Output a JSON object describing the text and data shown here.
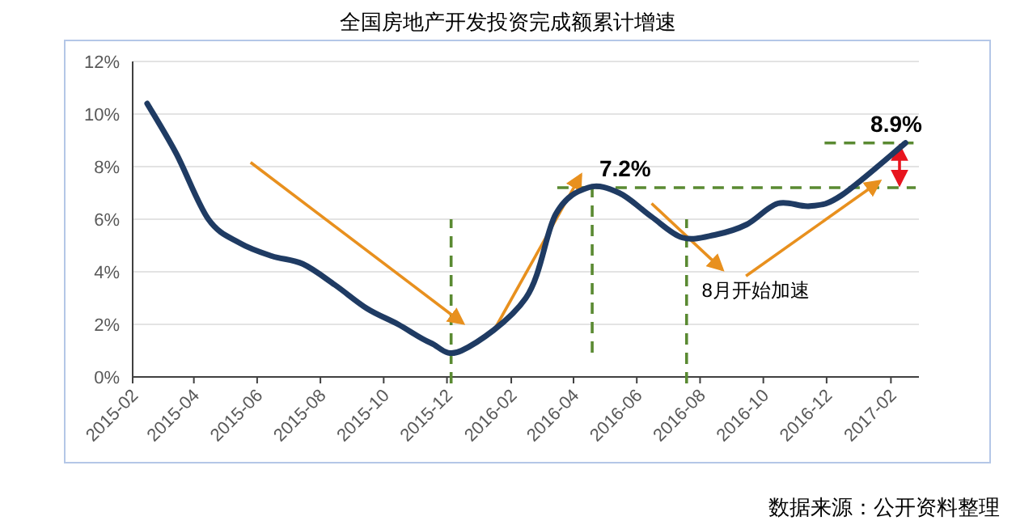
{
  "chart_data": {
    "type": "line",
    "title": "全国房地产开发投资完成额累计增速",
    "x": [
      "2015-02-15",
      "2015-03-15",
      "2015-04-15",
      "2015-05-15",
      "2015-06-15",
      "2015-07-15",
      "2015-08-15",
      "2015-09-15",
      "2015-10-15",
      "2015-11-15",
      "2015-12-15",
      "2016-02-15",
      "2016-03-15",
      "2016-04-15",
      "2016-05-15",
      "2016-06-15",
      "2016-07-15",
      "2016-08-15",
      "2016-09-15",
      "2016-10-15",
      "2016-11-15",
      "2016-12-15",
      "2017-02-15"
    ],
    "series": [
      {
        "color": "#1f3b63",
        "values": [
          10.4,
          8.5,
          6.0,
          5.1,
          4.6,
          4.3,
          3.5,
          2.6,
          2.0,
          1.3,
          1.0,
          3.0,
          6.2,
          7.2,
          7.0,
          6.1,
          5.3,
          5.4,
          5.8,
          6.6,
          6.5,
          6.9,
          8.9
        ]
      }
    ],
    "xlim": [
      "2015-02-01",
      "2017-02-28"
    ],
    "xticks": [
      {
        "value": "2015-02-01",
        "label": "2015-02"
      },
      {
        "value": "2015-04-01",
        "label": "2015-04"
      },
      {
        "value": "2015-06-01",
        "label": "2015-06"
      },
      {
        "value": "2015-08-01",
        "label": "2015-08"
      },
      {
        "value": "2015-10-01",
        "label": "2015-10"
      },
      {
        "value": "2015-12-01",
        "label": "2015-12"
      },
      {
        "value": "2016-02-01",
        "label": "2016-02"
      },
      {
        "value": "2016-04-01",
        "label": "2016-04"
      },
      {
        "value": "2016-06-01",
        "label": "2016-06"
      },
      {
        "value": "2016-08-01",
        "label": "2016-08"
      },
      {
        "value": "2016-10-01",
        "label": "2016-10"
      },
      {
        "value": "2016-12-01",
        "label": "2016-12"
      },
      {
        "value": "2017-02-01",
        "label": "2017-02"
      }
    ],
    "ylim": [
      0,
      12
    ],
    "yticks": [
      {
        "value": 0,
        "label": "0%"
      },
      {
        "value": 2,
        "label": "2%"
      },
      {
        "value": 4,
        "label": "4%"
      },
      {
        "value": 6,
        "label": "6%"
      },
      {
        "value": 8,
        "label": "8%"
      },
      {
        "value": 10,
        "label": "10%"
      },
      {
        "value": 12,
        "label": "12%"
      }
    ],
    "grid": "y",
    "marker": "none",
    "line_style": "solid",
    "ref_lines": [
      {
        "axis": "x",
        "value": "2015-12-05",
        "color": "#5a8a32",
        "line_style": "dashed"
      },
      {
        "axis": "x",
        "value": "2016-04-19",
        "color": "#5a8a32",
        "line_style": "dashed"
      },
      {
        "axis": "x",
        "value": "2016-07-19",
        "color": "#5a8a32",
        "line_style": "dashed"
      },
      {
        "axis": "y",
        "value": 7.2,
        "label": "7.2%",
        "color": "#5a8a32",
        "line_style": "dashed"
      },
      {
        "axis": "y",
        "value": 8.9,
        "label": "8.9%",
        "color": "#5a8a32",
        "line_style": "dashed"
      }
    ],
    "annotations": [
      {
        "text": "8月开始加速",
        "x": "2016-08-15",
        "y": 5.4
      },
      "数据来源：公开资料整理"
    ]
  }
}
